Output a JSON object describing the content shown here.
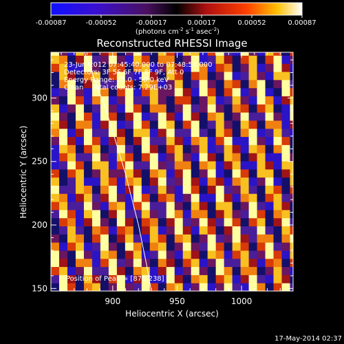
{
  "colorbar": {
    "ticks": [
      "-0.00087",
      "-0.00052",
      "-0.00017",
      "0.00017",
      "0.00052",
      "0.00087"
    ],
    "unit_main": "(photons cm",
    "unit_sup1": "-2",
    "unit_mid": " s",
    "unit_sup2": "-1",
    "unit_end": " asec",
    "unit_sup3": "-2",
    "unit_close": ")"
  },
  "annotations": [
    "23-Jun-2012 07:45:40.000 to 07:48:54.000",
    "Detectors: 3F 5F 6F 7F 8F 9F, Att 0",
    "Energy Range: 25.0 - 50.0 keV",
    "Clean    Total counts: 7.29E+03"
  ],
  "peak_label": "Position of Peak = [870,238]",
  "footer_date": "17-May-2014 02:37",
  "chart_data": {
    "type": "heatmap",
    "title": "Reconstructed RHESSI Image",
    "xlabel": "Heliocentric X (arcsec)",
    "ylabel": "Heliocentric Y (arcsec)",
    "xlim": [
      852,
      1040
    ],
    "ylim": [
      148,
      336
    ],
    "x_ticks": [
      900,
      950,
      1000
    ],
    "y_ticks": [
      150,
      200,
      250,
      300
    ],
    "color_range": [
      -0.00087,
      0.00087
    ],
    "pattern": {
      "description_free": true,
      "stripe_period_arcsec": 21,
      "stripe_slope": -2.6
    },
    "limb_curve": [
      [
        878,
        336
      ],
      [
        895,
        290
      ],
      [
        910,
        240
      ],
      [
        920,
        200
      ],
      [
        926,
        170
      ],
      [
        930,
        148
      ]
    ],
    "peak_position": [
      870,
      238
    ]
  }
}
